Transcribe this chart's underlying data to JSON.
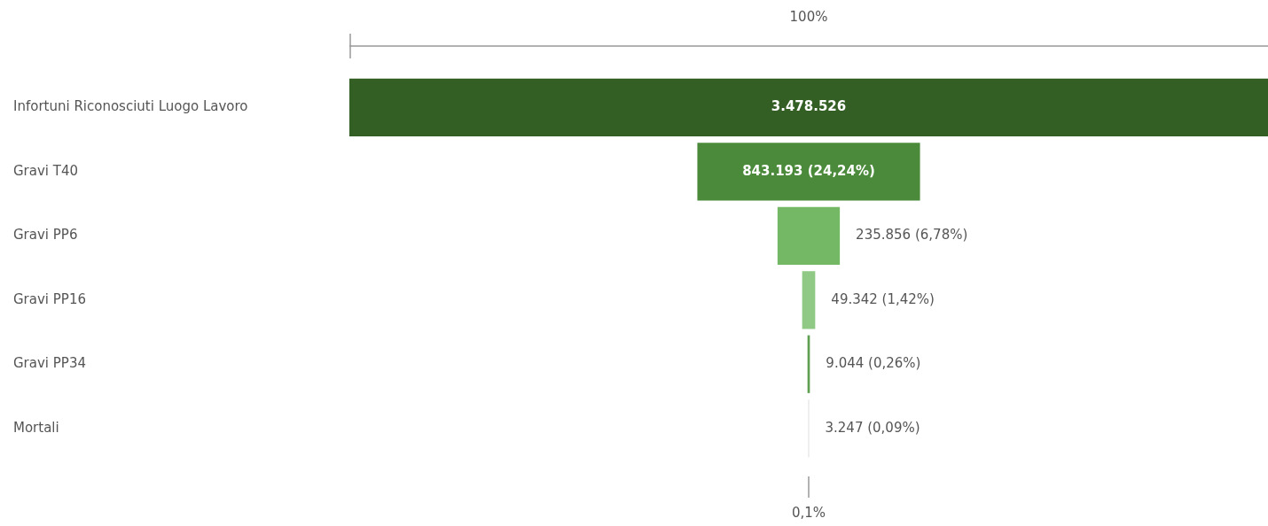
{
  "chart_data": {
    "type": "other",
    "categories": [
      "Infortuni Riconosciuti Luogo Lavoro",
      "Gravi T40",
      "Gravi PP6",
      "Gravi PP16",
      "Gravi PP34",
      "Mortali"
    ],
    "values": [
      3478526,
      843193,
      235856,
      49342,
      9044,
      3247
    ],
    "colors": [
      "#345f24",
      "#4a8a3a",
      "#74b866",
      "#8fc985",
      "#5ea050",
      "#dddddd"
    ],
    "value_labels": [
      "3.478.526",
      "843.193 (24,24%)",
      "235.856 (6,78%)",
      "49.342 (1,42%)",
      "9.044 (0,26%)",
      "3.247 (0,09%)"
    ],
    "annotations": [
      "100%",
      "0,1%"
    ],
    "legend": false
  }
}
